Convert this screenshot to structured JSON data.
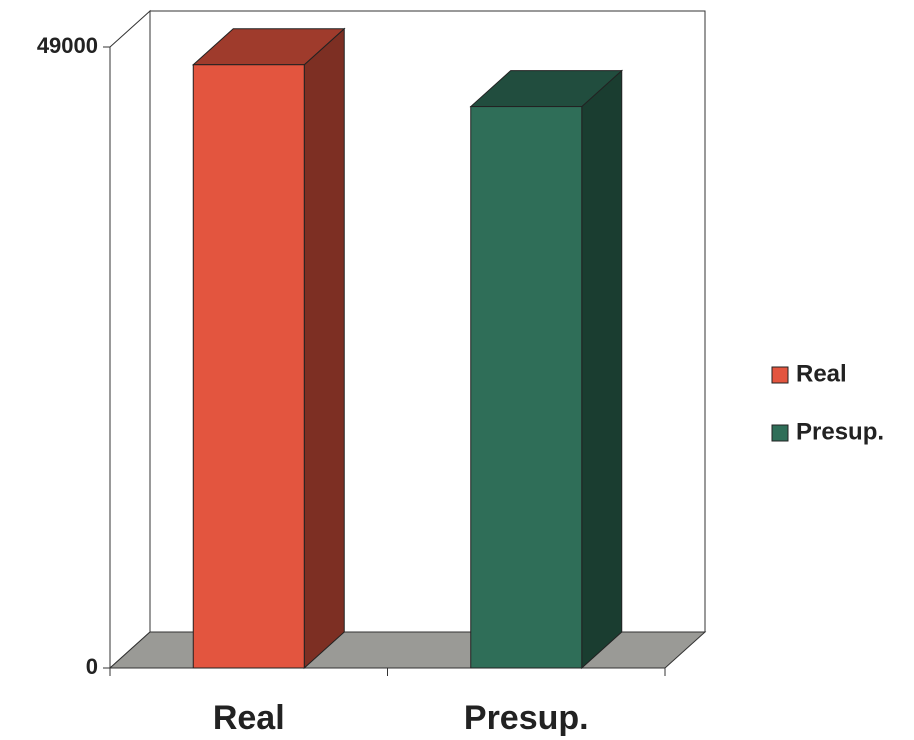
{
  "chart_data": {
    "type": "bar3d",
    "categories": [
      "Real",
      "Presup."
    ],
    "values": [
      47600,
      44300
    ],
    "colors": [
      "#e3553f",
      "#2f6e58"
    ],
    "ylim": [
      0,
      49000
    ],
    "yticks": [
      0,
      49000
    ],
    "legend": "right"
  }
}
